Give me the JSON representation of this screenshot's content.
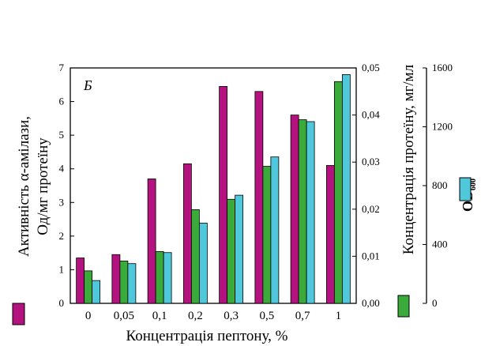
{
  "chart_data": {
    "type": "bar",
    "panel_label": "Б",
    "categories": [
      "0",
      "0,05",
      "0,1",
      "0,2",
      "0,3",
      "0,5",
      "0,7",
      "1"
    ],
    "xlabel": "Концентрація пептону, %",
    "ylabel_left_line1": "Активність α-амілази,",
    "ylabel_left_line2": "Од/мг протеїну",
    "ylabel_right1": "Концентрація протеїну, мг/мл",
    "ylabel_right2_main": "OD",
    "ylabel_right2_sub": "600",
    "axes": {
      "left": {
        "min": 0,
        "max": 7,
        "ticks": [
          "0",
          "1",
          "2",
          "3",
          "4",
          "5",
          "6",
          "7"
        ]
      },
      "right1": {
        "min": 0,
        "max": 0.05,
        "ticks": [
          "0,00",
          "0,01",
          "0,02",
          "0,03",
          "0,04",
          "0,05"
        ]
      },
      "right2": {
        "min": 0,
        "max": 1600,
        "ticks": [
          "0",
          "400",
          "800",
          "1200",
          "1600"
        ]
      }
    },
    "series": [
      {
        "axis": "left",
        "color": "#b3127f",
        "values": [
          1.35,
          1.45,
          3.7,
          4.15,
          6.45,
          6.3,
          5.6,
          4.1
        ]
      },
      {
        "axis": "right1",
        "color": "#3aab3a",
        "values": [
          0.0069,
          0.009,
          0.011,
          0.0199,
          0.0221,
          0.0291,
          0.039,
          0.0471
        ]
      },
      {
        "axis": "right2",
        "color": "#4fc8dc",
        "values": [
          155,
          270,
          345,
          545,
          735,
          995,
          1235,
          1555
        ]
      }
    ],
    "grid": false,
    "legend": "beside-axes"
  }
}
